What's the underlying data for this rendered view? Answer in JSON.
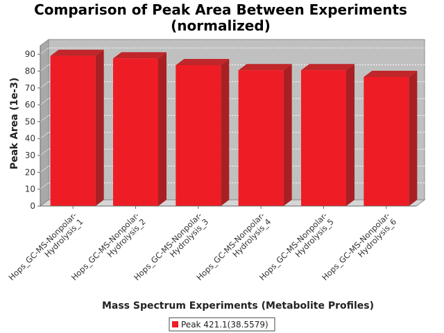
{
  "chart_data": {
    "type": "bar",
    "title_lines": [
      "Comparison of Peak Area Between Experiments",
      "(normalized)"
    ],
    "xlabel": "Mass Spectrum Experiments (Metabolite Profiles)",
    "ylabel": "Peak Area (1e-3)",
    "ylim": [
      0,
      95
    ],
    "yticks": [
      0,
      10,
      20,
      30,
      40,
      50,
      60,
      70,
      80,
      90
    ],
    "grid": true,
    "legend_placement": "bottom-center",
    "categories": [
      [
        "Hops_GC-MS-Nonpolar-",
        "Hydrolysis_1"
      ],
      [
        "Hops_GC-MS-Nonpolar-",
        "Hydrolysis_2"
      ],
      [
        "Hops_GC-MS-Nonpolar-",
        "Hydrolysis_3"
      ],
      [
        "Hops_GC-MS-Nonpolar-",
        "Hydrolysis_4"
      ],
      [
        "Hops_GC-MS-Nonpolar-",
        "Hydrolysis_5"
      ],
      [
        "Hops_GC-MS-Nonpolar-",
        "Hydrolysis_6"
      ]
    ],
    "series": [
      {
        "name": "Peak 421.1(38.5579)",
        "values": [
          89,
          87.5,
          83.5,
          80.5,
          80.5,
          76.5
        ],
        "color": "#ee1c24"
      }
    ],
    "colors": {
      "plot_background": "#c0c0c0",
      "bar": "#ee1c24",
      "bar_top": "#c0262a",
      "bar_side": "#a82024"
    }
  }
}
